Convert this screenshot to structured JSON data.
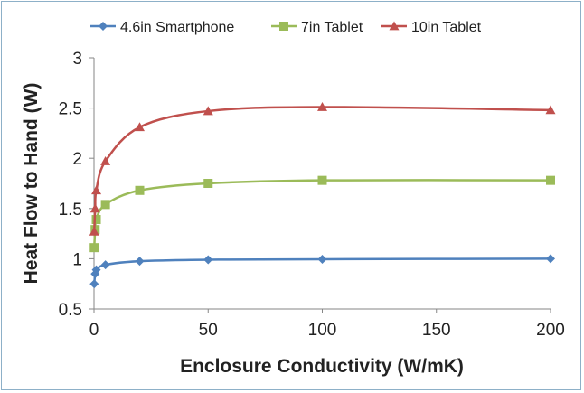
{
  "chart_data": {
    "type": "line",
    "title": "",
    "xlabel": "Enclosure Conductivity (W/mK)",
    "ylabel": "Heat Flow to Hand (W)",
    "xlim": [
      0,
      200
    ],
    "ylim": [
      0.5,
      3
    ],
    "xticks": [
      "0",
      "50",
      "100",
      "150",
      "200"
    ],
    "yticks": [
      "0.5",
      "1",
      "1.5",
      "2",
      "2.5",
      "3"
    ],
    "legend_position": "top",
    "grid": false,
    "x": [
      0.1,
      0.5,
      1,
      5,
      20,
      50,
      100,
      200
    ],
    "series": [
      {
        "name": "4.6in Smartphone",
        "color": "#4f81bd",
        "marker": "diamond",
        "values": [
          0.75,
          0.85,
          0.89,
          0.94,
          0.975,
          0.99,
          0.995,
          1.0
        ]
      },
      {
        "name": "7in Tablet",
        "color": "#9bbb59",
        "marker": "square",
        "values": [
          1.11,
          1.29,
          1.39,
          1.54,
          1.68,
          1.75,
          1.78,
          1.78
        ]
      },
      {
        "name": "10in Tablet",
        "color": "#c0504d",
        "marker": "triangle",
        "values": [
          1.27,
          1.5,
          1.68,
          1.97,
          2.31,
          2.47,
          2.51,
          2.48
        ]
      }
    ]
  }
}
